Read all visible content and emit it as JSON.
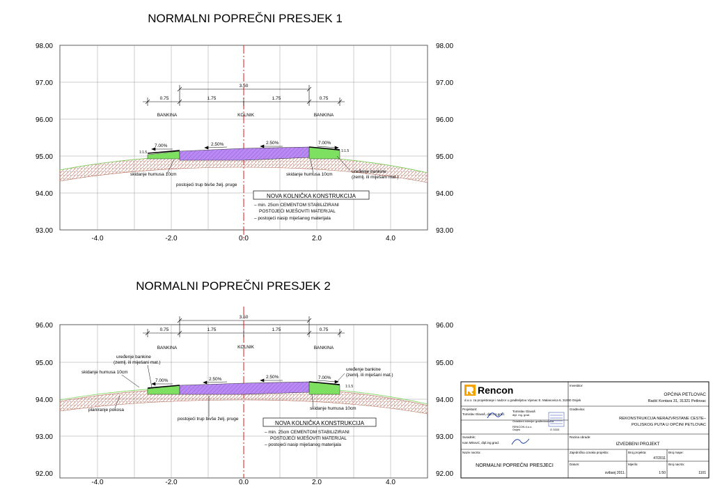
{
  "section1": {
    "title": "NORMALNI POPREČNI PRESJEK 1",
    "y_ticks": [
      "98.00",
      "97.00",
      "96.00",
      "95.00",
      "94.00",
      "93.00"
    ],
    "x_ticks": [
      "-4.0",
      "-2.0",
      "0.0",
      "2.0",
      "4.0"
    ],
    "dims": {
      "total": "3.50",
      "half_left": "1.75",
      "half_right": "1.75",
      "bank_left": "0.75",
      "bank_right": "0.75"
    },
    "labels": {
      "bankina_left": "BANKINA",
      "kolnik": "KOLNIK",
      "bankina_right": "BANKINA"
    },
    "slopes": {
      "left_bank": "7.00%",
      "left_lane": "2.50%",
      "right_lane": "2.50%",
      "right_bank": "7.00%",
      "embank_left": "1:1.5",
      "embank_right": "1:1.5"
    },
    "notes": {
      "skid_left": "skidanje humusa 10cm",
      "skid_right": "skidanje humusa 10cm",
      "uredenje1": "uređenje bankine",
      "uredenje2": "(zemlj. ili miješani mat.)",
      "trup": "postojeći trup bivše želj. pruge"
    },
    "konstrukcija": {
      "title": "NOVA KOLNIČKA KONSTRUKCIJA",
      "line1": "– min. 25cm CEMENTOM STABILIZIRANI",
      "line2": "POSTOJEĆI MJEŠOVITI MATERIJAL",
      "line3": "– postojeći nasip miješanog materijala"
    }
  },
  "section2": {
    "title": "NORMALNI POPREČNI PRESJEK 2",
    "y_ticks": [
      "96.00",
      "95.00",
      "94.00",
      "93.00",
      "92.00"
    ],
    "x_ticks": [
      "-4.0",
      "-2.0",
      "0.0",
      "2.0",
      "4.0"
    ],
    "dims": {
      "total": "3.50",
      "half_left": "1.75",
      "half_right": "1.75",
      "bank_left": "0.75",
      "bank_right": "0.75"
    },
    "labels": {
      "bankina_left": "BANKINA",
      "kolnik": "KOLNIK",
      "bankina_right": "BANKINA"
    },
    "slopes": {
      "left_bank": "7.00%",
      "left_lane": "2.50%",
      "right_lane": "2.50%",
      "right_bank": "7.00%",
      "embank_right": "1:1.5"
    },
    "notes": {
      "uredenje_l1": "uređenje bankine",
      "uredenje_l2": "(zemlj. ili miješani mat.)",
      "skid_left": "skidanje humusa 10cm",
      "uredenje_r1": "uređenje bankine",
      "uredenje_r2": "(zemlj. ili miješani mat.)",
      "skid_right": "skidanje humusa 10cm",
      "planiranje": "planiranje pokosa",
      "trup": "postojeći trup bivše želj. pruge"
    },
    "konstrukcija": {
      "title": "NOVA KOLNIČKA KONSTRUKCIJA",
      "line1": "– min. 25cm CEMENTOM STABILIZIRANI",
      "line2": "POSTOJEĆI MJEŠOVITI MATERIJAL",
      "line3": "– postojeći nasip miješanog materijala"
    }
  },
  "title_block": {
    "company": "Rencon",
    "company_sub": "d.o.o. za projektiranje i nadzor u graditeljstvu  Vijenac E. Malanovica 6, 31000 Osijek",
    "investitor_label": "Investitor:",
    "investitor_1": "OPĆINA PETLOVAC",
    "investitor_2": "Radić Kontara 31, 31321 Petlovac",
    "projektant_label": "Projektant:",
    "projektant": "Tomislav Glavaš, dipl.ing.grad.",
    "stamp_1": "Tomislav Glavaš",
    "stamp_2": "dipl. ing. grad.",
    "stamp_3": "Ovlašteni inženjer građevinarstva",
    "stamp_4": "RENCON d.o.o.",
    "stamp_5": "Osijek",
    "stamp_num": "G 3333",
    "gradevina_label": "Građevina:",
    "gradevina_1": "REKONSTRUKCIJA NERAZVRSTANE CESTE–",
    "gradevina_2": "POLJSKOG PUTA U OPĆINI PETLOVAC",
    "suradnik_label": "Suradnik:",
    "suradnik": "Ivan Miković, dipl.ing.grad.",
    "razina_label": "Razina obrade:",
    "razina": "IZVEDBENI PROJEKT",
    "naziv_label": "Naziv nacrta:",
    "naziv": "NORMALNI POPREČNI PRESJECI",
    "zop_label": "Zajednička oznaka projekta:",
    "broj_projekta_label": "Broj projekta:",
    "broj_projekta": "47/2011",
    "broj_mape_label": "Broj mape:",
    "datum_label": "Datum:",
    "datum": "svibanj 2011.",
    "mjerilo_label": "Mjerilo:",
    "mjerilo": "1:50",
    "broj_nacrta_label": "Broj nacrta:",
    "broj_nacrta": "1101"
  },
  "colors": {
    "centerline": "#e00000",
    "pavement": "#b07cf0",
    "bankina": "#7ee060",
    "ground": "#d89a88",
    "logo": "#f4a300"
  }
}
